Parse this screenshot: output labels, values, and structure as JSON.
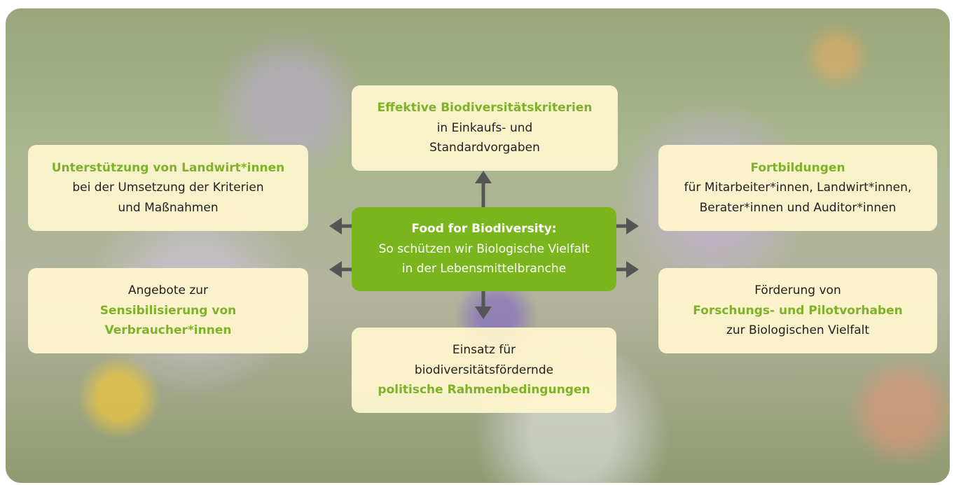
{
  "nodes": [
    {
      "lines": [
        "Food for Biodiversity:",
        "So schützen wir Biologische Vielfalt",
        "in der Lebensmittelbranche"
      ]
    },
    {
      "lines": [
        "Effektive Biodiversitätskriterien",
        "in Einkaufs- und",
        "Standardvorgaben"
      ]
    },
    {
      "lines": [
        "Unterstützung von Landwirt*innen",
        "bei der Umsetzung der Kriterien",
        "und Maßnahmen"
      ]
    },
    {
      "lines": [
        "Fortbildungen",
        "für Mitarbeiter*innen, Landwirt*innen,",
        "Berater*innen und Auditor*innen"
      ]
    },
    {
      "lines": [
        "Angebote zur",
        "Sensibilisierung von",
        "Verbraucher*innen"
      ]
    },
    {
      "lines": [
        "Förderung von",
        "Forschungs- und Pilotvorhaben",
        "zur Biologischen Vielfalt"
      ]
    },
    {
      "lines": [
        "Einsatz für",
        "biodiversitätsfördernde",
        "politische Rahmenbedingungen"
      ]
    }
  ]
}
